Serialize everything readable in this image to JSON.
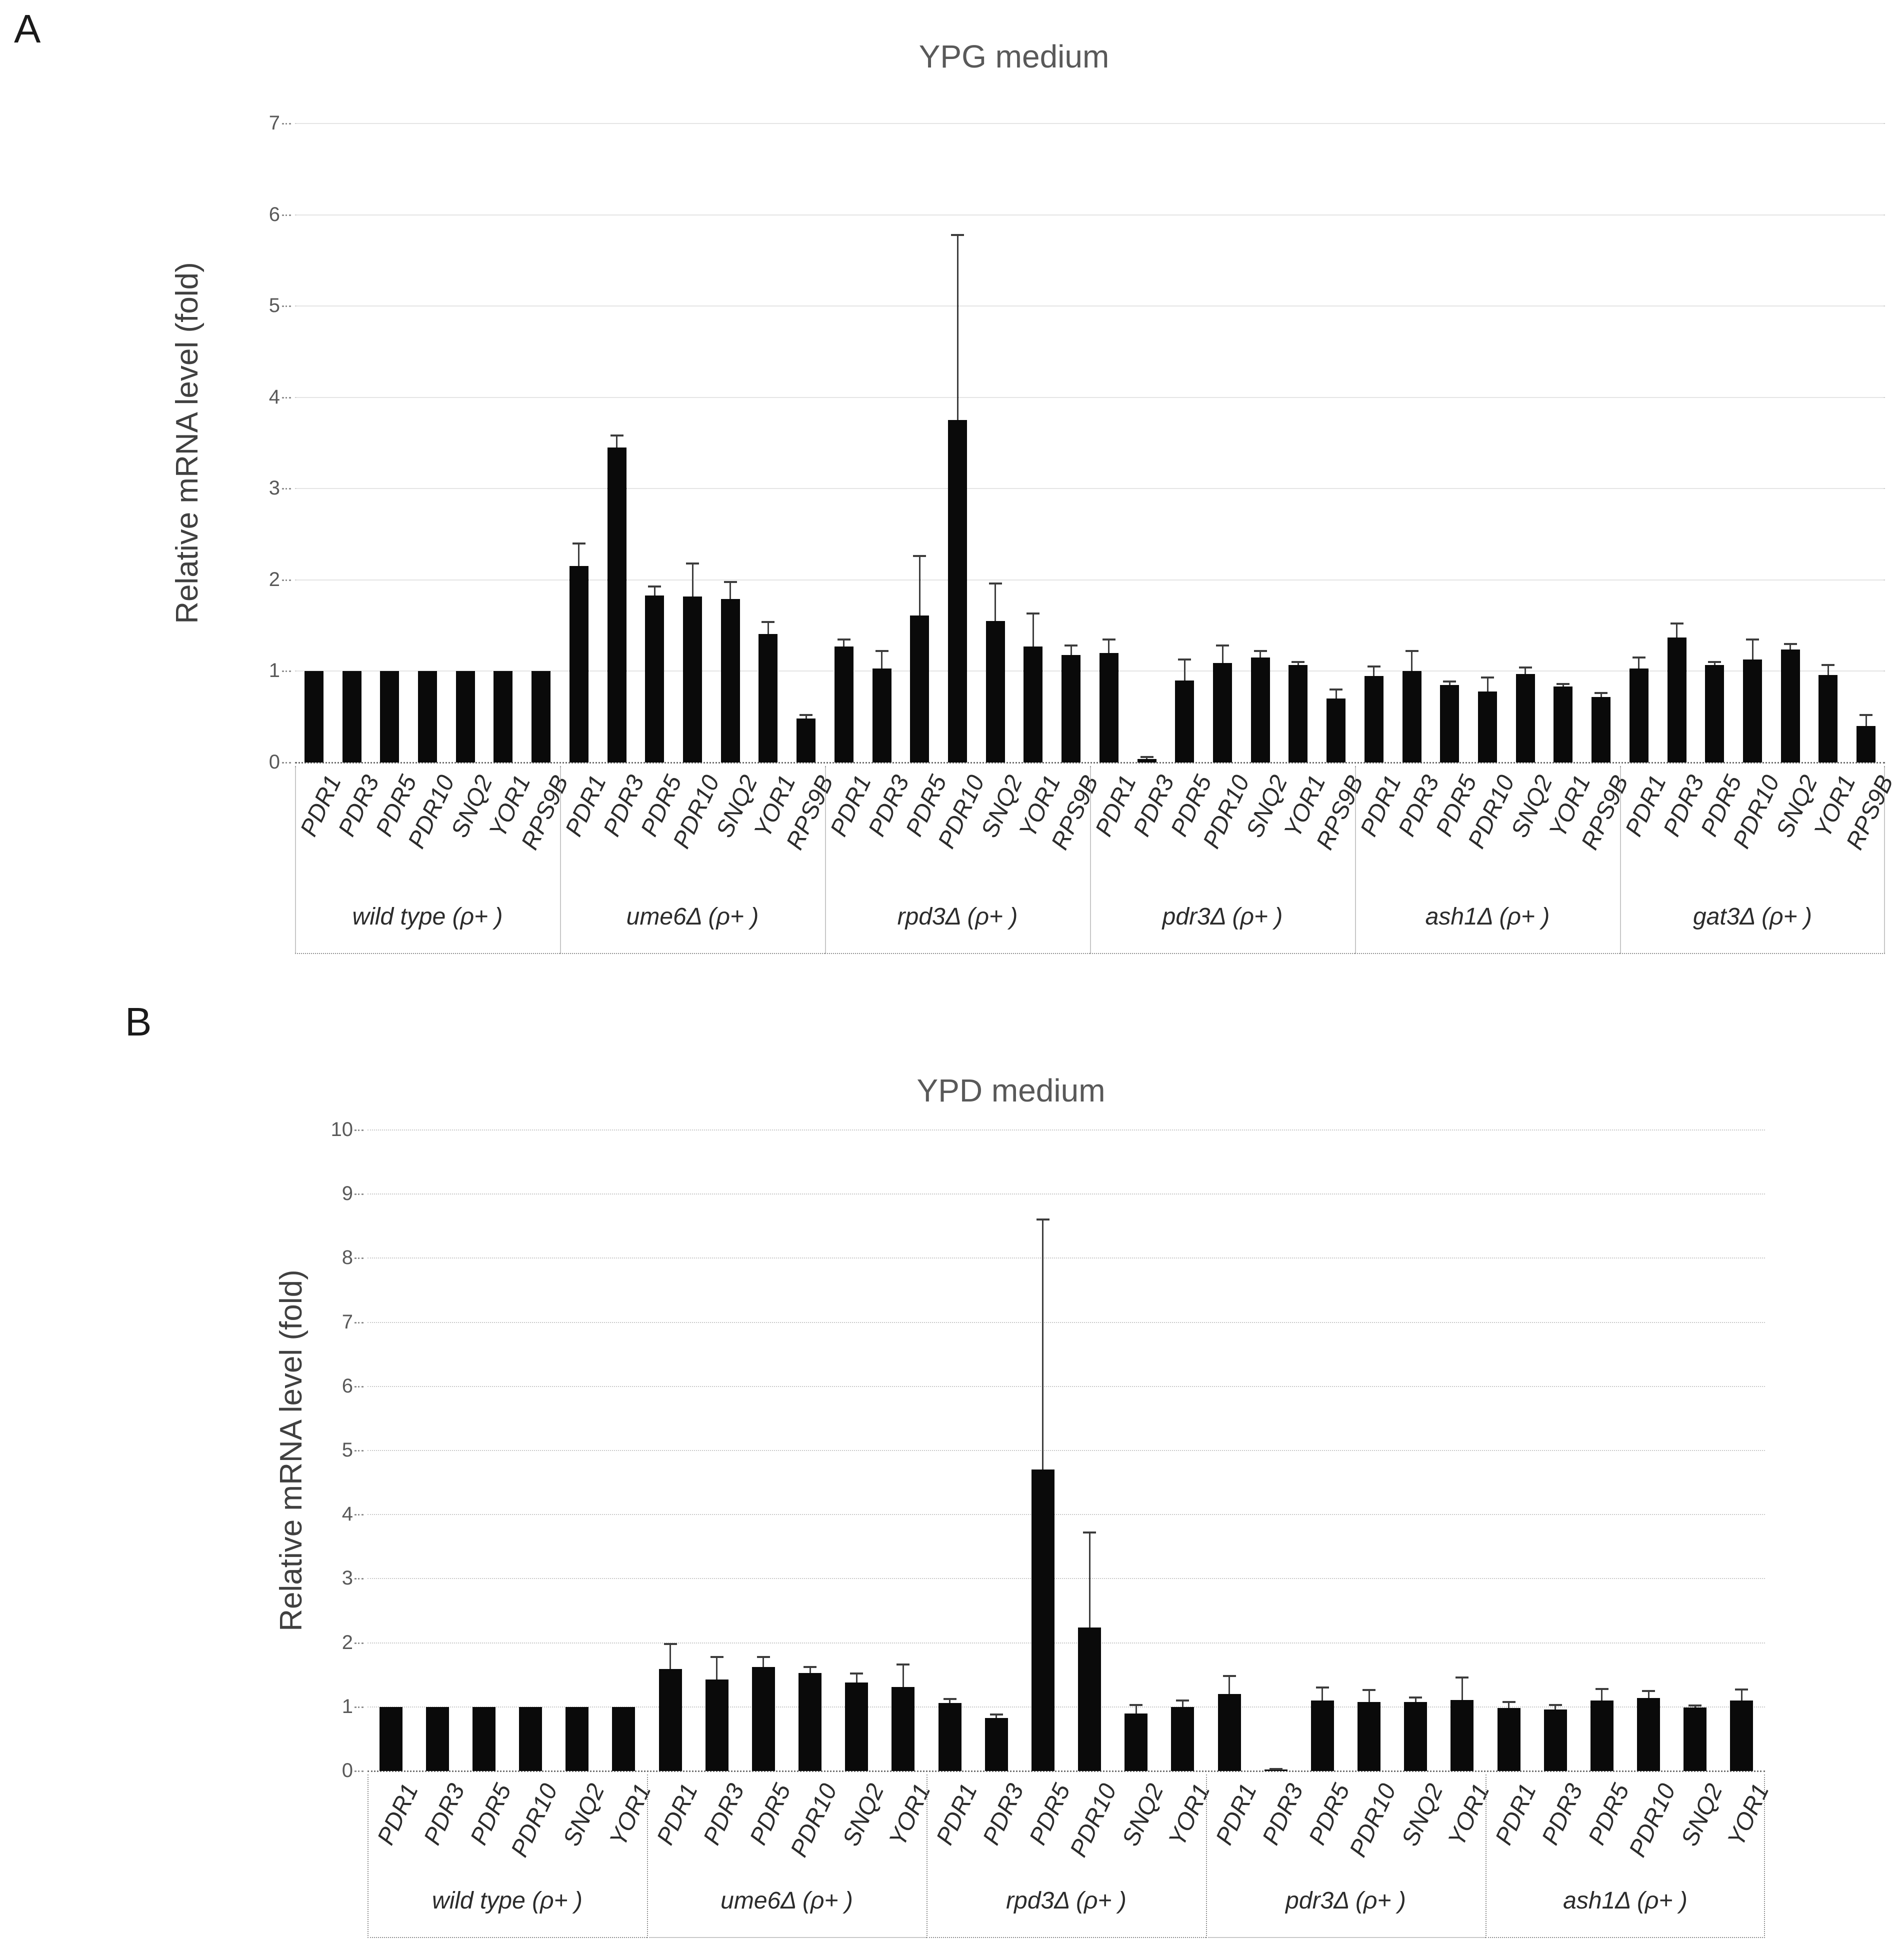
{
  "figure": {
    "panel_a_letter": "A",
    "panel_b_letter": "B"
  },
  "chart_data": [
    {
      "type": "bar",
      "panel": "A",
      "title": "YPG medium",
      "ylabel": "Relative mRNA level (fold)",
      "ylim": [
        0,
        7
      ],
      "yticks": [
        0,
        1,
        2,
        3,
        4,
        5,
        6,
        7
      ],
      "grid": true,
      "legend": "none",
      "bar_color": "#0a0a0a",
      "error_bars": "upper only",
      "categories": [
        "PDR1",
        "PDR3",
        "PDR5",
        "PDR10",
        "SNQ2",
        "YOR1",
        "RPS9B"
      ],
      "groups": [
        {
          "name": "wild type (ρ+ )",
          "values": [
            1.0,
            1.0,
            1.0,
            1.0,
            1.0,
            1.0,
            1.0
          ],
          "errors_up": [
            0,
            0,
            0,
            0,
            0,
            0,
            0
          ]
        },
        {
          "name": "ume6Δ (ρ+ )",
          "values": [
            2.15,
            3.45,
            1.83,
            1.82,
            1.79,
            1.41,
            0.48
          ],
          "errors_up": [
            0.25,
            0.13,
            0.1,
            0.36,
            0.19,
            0.13,
            0.04
          ]
        },
        {
          "name": "rpd3Δ (ρ+ )",
          "values": [
            1.27,
            1.03,
            1.61,
            3.75,
            1.55,
            1.27,
            1.18
          ],
          "errors_up": [
            0.08,
            0.19,
            0.65,
            2.03,
            0.41,
            0.36,
            0.1
          ]
        },
        {
          "name": "pdr3Δ (ρ+ )",
          "values": [
            1.2,
            0.04,
            0.9,
            1.09,
            1.15,
            1.07,
            0.7
          ],
          "errors_up": [
            0.15,
            0.02,
            0.23,
            0.19,
            0.07,
            0.03,
            0.1
          ]
        },
        {
          "name": "ash1Δ (ρ+ )",
          "values": [
            0.95,
            1.0,
            0.85,
            0.78,
            0.97,
            0.83,
            0.72
          ],
          "errors_up": [
            0.1,
            0.22,
            0.04,
            0.15,
            0.07,
            0.03,
            0.04
          ]
        },
        {
          "name": "gat3Δ (ρ+ )",
          "values": [
            1.03,
            1.37,
            1.07,
            1.13,
            1.24,
            0.96,
            0.4
          ],
          "errors_up": [
            0.12,
            0.15,
            0.03,
            0.22,
            0.06,
            0.11,
            0.12
          ]
        }
      ]
    },
    {
      "type": "bar",
      "panel": "B",
      "title": "YPD medium",
      "ylabel": "Relative mRNA level (fold)",
      "ylim": [
        0,
        10
      ],
      "yticks": [
        0,
        1,
        2,
        3,
        4,
        5,
        6,
        7,
        8,
        9,
        10
      ],
      "grid": true,
      "legend": "none",
      "bar_color": "#0a0a0a",
      "error_bars": "upper only",
      "categories": [
        "PDR1",
        "PDR3",
        "PDR5",
        "PDR10",
        "SNQ2",
        "YOR1"
      ],
      "groups": [
        {
          "name": "wild type (ρ+ )",
          "values": [
            1.0,
            1.0,
            1.0,
            1.0,
            1.0,
            1.0
          ],
          "errors_up": [
            0,
            0,
            0,
            0,
            0,
            0
          ]
        },
        {
          "name": "ume6Δ (ρ+ )",
          "values": [
            1.59,
            1.43,
            1.62,
            1.53,
            1.38,
            1.31
          ],
          "errors_up": [
            0.39,
            0.35,
            0.16,
            0.09,
            0.14,
            0.35
          ]
        },
        {
          "name": "rpd3Δ (ρ+ )",
          "values": [
            1.06,
            0.83,
            4.7,
            2.24,
            0.9,
            1.0
          ],
          "errors_up": [
            0.06,
            0.05,
            3.9,
            1.48,
            0.13,
            0.1
          ]
        },
        {
          "name": "pdr3Δ (ρ+ )",
          "values": [
            1.2,
            0.02,
            1.1,
            1.08,
            1.08,
            1.11
          ],
          "errors_up": [
            0.28,
            0.01,
            0.2,
            0.18,
            0.07,
            0.35
          ]
        },
        {
          "name": "ash1Δ (ρ+ )",
          "values": [
            0.98,
            0.96,
            1.1,
            1.14,
            0.99,
            1.1
          ],
          "errors_up": [
            0.1,
            0.07,
            0.18,
            0.11,
            0.03,
            0.17
          ]
        }
      ]
    }
  ]
}
